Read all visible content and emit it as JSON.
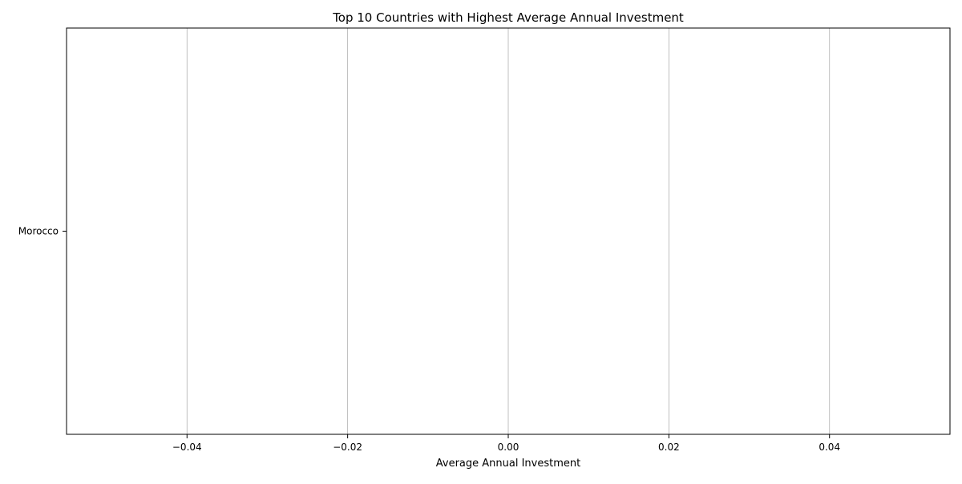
{
  "chart_data": {
    "type": "bar",
    "orientation": "horizontal",
    "title": "Top 10 Countries with Highest Average Annual Investment",
    "xlabel": "Average Annual Investment",
    "ylabel": "",
    "categories": [
      "Morocco"
    ],
    "values": [
      0
    ],
    "xlim": [
      -0.055,
      0.055
    ],
    "xticks": [
      -0.04,
      -0.02,
      0.0,
      0.02,
      0.04
    ],
    "xtick_labels": [
      "−0.04",
      "−0.02",
      "0.00",
      "0.02",
      "0.04"
    ],
    "grid": "x-axis",
    "legend": "none",
    "colors": {
      "bar": "#1f77b4",
      "grid": "#b0b0b0",
      "axis": "#000000"
    }
  }
}
